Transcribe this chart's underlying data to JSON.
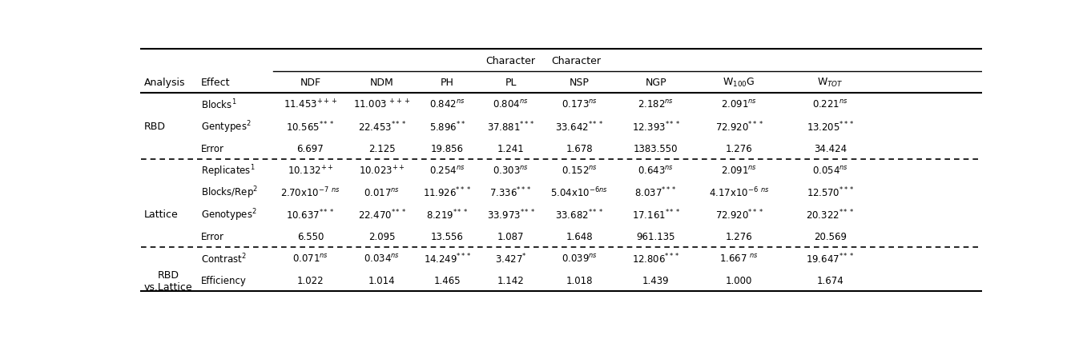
{
  "sections": [
    {
      "analysis": "RBD",
      "rows": [
        {
          "effect": "Blocks$^1$",
          "values": [
            "11.453$^{+++}$",
            "11.003 $^{+++}$",
            "0.842$^{ns}$",
            "0.804$^{ns}$",
            "0.173$^{ns}$",
            "2.182$^{ns}$",
            "2.091$^{ns}$",
            "0.221$^{ns}$"
          ]
        },
        {
          "effect": "Gentypes$^2$",
          "values": [
            "10.565$^{***}$",
            "22.453$^{***}$",
            "5.896$^{**}$",
            "37.881$^{***}$",
            "33.642$^{***}$",
            "12.393$^{***}$",
            "72.920$^{***}$",
            "13.205$^{***}$"
          ]
        },
        {
          "effect": "Error",
          "values": [
            "6.697",
            "2.125",
            "19.856",
            "1.241",
            "1.678",
            "1383.550",
            "1.276",
            "34.424"
          ]
        }
      ]
    },
    {
      "analysis": "Lattice",
      "rows": [
        {
          "effect": "Replicates$^1$",
          "values": [
            "10.132$^{++}$",
            "10.023$^{++}$",
            "0.254$^{ns}$",
            "0.303$^{ns}$",
            "0.152$^{ns}$",
            "0.643$^{ns}$",
            "2.091$^{ns}$",
            "0.054$^{ns}$"
          ]
        },
        {
          "effect": "Blocks/Rep$^2$",
          "values": [
            "2.70x10$^{-7}$ $^{ns}$",
            "0.017$^{ns}$",
            "11.926$^{***}$",
            "7.336$^{***}$",
            "5.04x10$^{-6}$$^{ns}$",
            "8.037$^{***}$",
            "4.17x10$^{-6}$ $^{ns}$",
            "12.570$^{***}$"
          ]
        },
        {
          "effect": "Genotypes$^2$",
          "values": [
            "10.637$^{***}$",
            "22.470$^{***}$",
            "8.219$^{***}$",
            "33.973$^{***}$",
            "33.682$^{***}$",
            "17.161$^{***}$",
            "72.920$^{***}$",
            "20.322$^{***}$"
          ]
        },
        {
          "effect": "Error",
          "values": [
            "6.550",
            "2.095",
            "13.556",
            "1.087",
            "1.648",
            "961.135",
            "1.276",
            "20.569"
          ]
        }
      ]
    },
    {
      "analysis": "RBD\nvs.Lattice",
      "rows": [
        {
          "effect": "Contrast$^2$",
          "values": [
            "0.071$^{ns}$",
            "0.034$^{ns}$",
            "14.249$^{***}$",
            "3.427$^{*}$",
            "0.039$^{ns}$",
            "12.806$^{***}$",
            "1.667 $^{ns}$",
            "19.647$^{***}$"
          ]
        },
        {
          "effect": "Efficiency",
          "values": [
            "1.022",
            "1.014",
            "1.465",
            "1.142",
            "1.018",
            "1.439",
            "1.000",
            "1.674"
          ]
        }
      ]
    }
  ],
  "col_headers": [
    "NDF",
    "NDM",
    "PH",
    "PL",
    "NSP",
    "NGP",
    "W$_{100}$G",
    "W$_{TOT}$"
  ],
  "top_header": "Character",
  "left_headers": [
    "Analysis",
    "Effect"
  ],
  "bg_color": "white",
  "text_color": "black",
  "font_size": 9.0,
  "small_font_size": 8.5
}
